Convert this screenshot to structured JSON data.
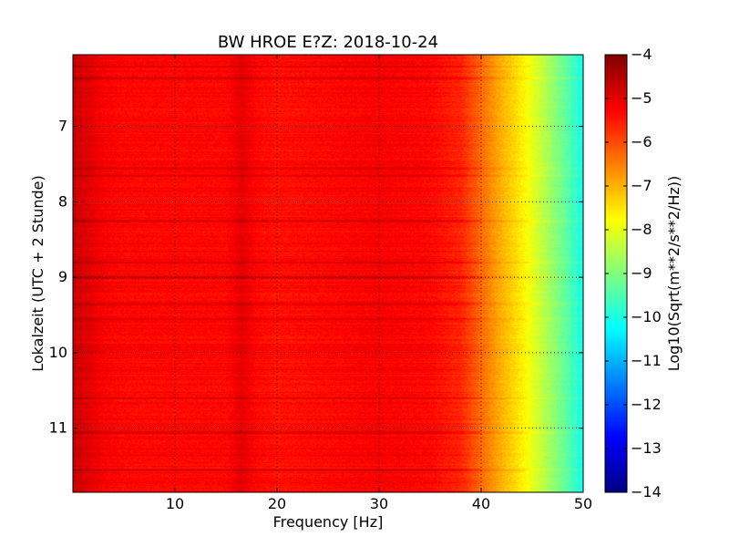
{
  "chart_data": {
    "type": "heatmap",
    "title": "BW HROE E?Z: 2018-10-24",
    "xlabel": "Frequency [Hz]",
    "ylabel": "Lokalzeit (UTC + 2 Stunde)",
    "colorbar_label": "Log10(Sqrt(m**2/s**2/Hz))",
    "xlim": [
      0,
      50
    ],
    "ylim": [
      11.85,
      6.05
    ],
    "clim": [
      -14,
      -4
    ],
    "x_ticks": [
      10,
      20,
      30,
      40,
      50
    ],
    "y_ticks": [
      7,
      8,
      9,
      10,
      11
    ],
    "colorbar_ticks": [
      -4,
      -5,
      -6,
      -7,
      -8,
      -9,
      -10,
      -11,
      -12,
      -13,
      -14
    ],
    "colormap": "jet",
    "grid": true,
    "frequency_profile": {
      "frequency_hz": [
        0,
        1,
        3,
        5,
        10,
        15,
        16.5,
        18,
        20,
        25,
        30,
        35,
        38,
        40,
        42,
        44,
        46,
        48,
        50
      ],
      "log10_amplitude": [
        -4.7,
        -4.9,
        -5.2,
        -5.3,
        -5.3,
        -5.3,
        -5.0,
        -5.3,
        -5.4,
        -5.3,
        -5.2,
        -5.3,
        -5.6,
        -6.3,
        -7.0,
        -7.6,
        -8.4,
        -9.2,
        -10.1
      ]
    },
    "stronger_rows_hours": [
      6.2,
      6.35,
      7.55,
      7.65,
      8.25,
      8.8,
      9.0,
      9.35,
      9.55,
      10.6,
      11.05,
      11.55
    ]
  }
}
